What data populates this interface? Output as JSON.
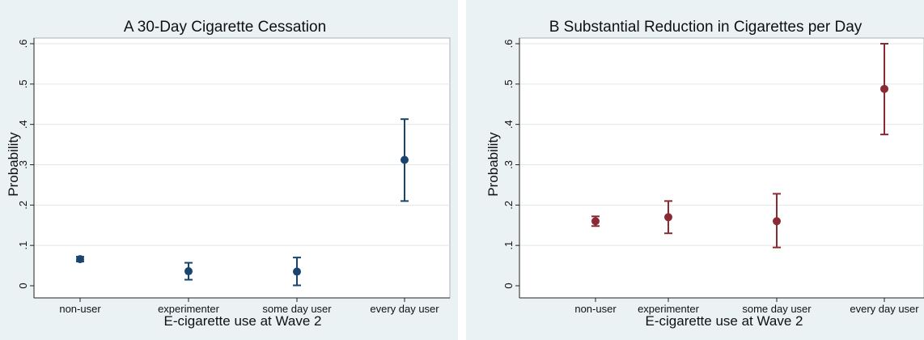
{
  "chart_data": [
    {
      "type": "scatter",
      "title": "A  30-Day Cigarette Cessation",
      "xlabel": "E-cigarette use at Wave 2",
      "ylabel": "Probability",
      "categories": [
        "non-user",
        "experimenter",
        "some day user",
        "every day user"
      ],
      "y_ticks": [
        "0",
        ".1",
        ".2",
        ".3",
        ".4",
        ".5",
        ".6"
      ],
      "ylim": [
        0,
        0.6
      ],
      "grid": true,
      "color": "#1a4470",
      "series": [
        {
          "values": [
            0.066,
            0.036,
            0.035,
            0.312
          ],
          "lower": [
            0.06,
            0.015,
            0.001,
            0.21
          ],
          "upper": [
            0.072,
            0.057,
            0.07,
            0.413
          ]
        }
      ]
    },
    {
      "type": "scatter",
      "title": "B  Substantial Reduction in Cigarettes per Day",
      "xlabel": "E-cigarette use at Wave 2",
      "ylabel": "Probability",
      "categories": [
        "non-user",
        "experimenter",
        "some day user",
        "every day user"
      ],
      "y_ticks": [
        "0",
        ".1",
        ".2",
        ".3",
        ".4",
        ".5",
        ".6"
      ],
      "ylim": [
        0,
        0.6
      ],
      "grid": true,
      "color": "#8b2a34",
      "series": [
        {
          "values": [
            0.16,
            0.17,
            0.16,
            0.488
          ],
          "lower": [
            0.148,
            0.13,
            0.095,
            0.375
          ],
          "upper": [
            0.172,
            0.21,
            0.228,
            0.6
          ]
        }
      ]
    }
  ]
}
